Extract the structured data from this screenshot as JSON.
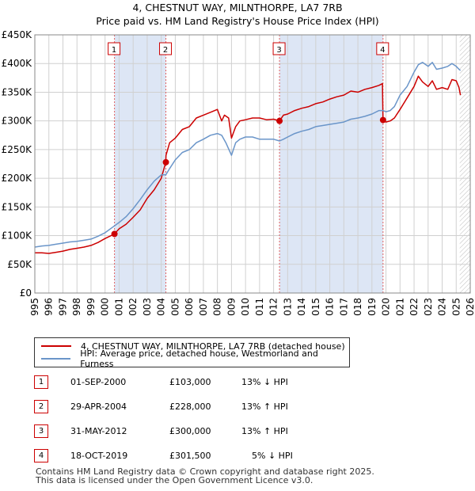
{
  "title_line1": "4, CHESTNUT WAY, MILNTHORPE, LA7 7RB",
  "title_line2": "Price paid vs. HM Land Registry's House Price Index (HPI)",
  "colors": {
    "property": "#cc0000",
    "hpi": "#6a95c9",
    "shade": "#dde6f5",
    "grid": "#d0d0d0"
  },
  "chart_data": {
    "type": "line",
    "title": "Price paid vs. HM Land Registry's House Price Index (HPI)",
    "xlim": [
      1995,
      2026
    ],
    "ylim": [
      0,
      450000
    ],
    "x_ticks": [
      "1995",
      "1996",
      "1997",
      "1998",
      "1999",
      "2000",
      "2001",
      "2002",
      "2003",
      "2004",
      "2005",
      "2006",
      "2007",
      "2008",
      "2009",
      "2010",
      "2011",
      "2012",
      "2013",
      "2014",
      "2015",
      "2016",
      "2017",
      "2018",
      "2019",
      "2020",
      "2021",
      "2022",
      "2023",
      "2024",
      "2025",
      "2026"
    ],
    "y_ticks": [
      {
        "value": 0,
        "label": "£0"
      },
      {
        "value": 50000,
        "label": "£50K"
      },
      {
        "value": 100000,
        "label": "£100K"
      },
      {
        "value": 150000,
        "label": "£150K"
      },
      {
        "value": 200000,
        "label": "£200K"
      },
      {
        "value": 250000,
        "label": "£250K"
      },
      {
        "value": 300000,
        "label": "£300K"
      },
      {
        "value": 350000,
        "label": "£350K"
      },
      {
        "value": 400000,
        "label": "£400K"
      },
      {
        "value": 450000,
        "label": "£450K"
      }
    ],
    "shaded_ranges": [
      [
        2000.67,
        2004.33
      ],
      [
        2012.42,
        2019.79
      ]
    ],
    "forecast_from": 2025.25,
    "series": [
      {
        "name": "4, CHESTNUT WAY, MILNTHORPE, LA7 7RB (detached house)",
        "key": "property",
        "x": [
          1995,
          1995.5,
          1996,
          1996.5,
          1997,
          1997.5,
          1998,
          1998.5,
          1999,
          1999.5,
          2000,
          2000.67,
          2001,
          2001.5,
          2002,
          2002.5,
          2003,
          2003.5,
          2004,
          2004.32,
          2004.34,
          2004.6,
          2005,
          2005.5,
          2006,
          2006.5,
          2007,
          2007.5,
          2008,
          2008.3,
          2008.5,
          2008.8,
          2009,
          2009.3,
          2009.6,
          2010,
          2010.5,
          2011,
          2011.5,
          2012,
          2012.42,
          2012.7,
          2013,
          2013.5,
          2014,
          2014.5,
          2015,
          2015.5,
          2016,
          2016.5,
          2017,
          2017.5,
          2018,
          2018.5,
          2019,
          2019.5,
          2019.75,
          2019.79,
          2020,
          2020.3,
          2020.6,
          2021,
          2021.5,
          2022,
          2022.3,
          2022.6,
          2023,
          2023.3,
          2023.6,
          2024,
          2024.4,
          2024.7,
          2025,
          2025.2,
          2025.3
        ],
        "y": [
          70000,
          70000,
          69000,
          71000,
          73000,
          76000,
          78000,
          80000,
          83000,
          88000,
          95000,
          103000,
          112000,
          120000,
          132000,
          145000,
          165000,
          180000,
          200000,
          228000,
          240000,
          262000,
          270000,
          285000,
          290000,
          305000,
          310000,
          315000,
          320000,
          300000,
          310000,
          305000,
          270000,
          290000,
          300000,
          302000,
          305000,
          305000,
          302000,
          303000,
          300000,
          310000,
          312000,
          318000,
          322000,
          325000,
          330000,
          333000,
          338000,
          342000,
          345000,
          352000,
          350000,
          355000,
          358000,
          362000,
          365000,
          301500,
          298000,
          300000,
          305000,
          320000,
          340000,
          360000,
          378000,
          368000,
          360000,
          370000,
          355000,
          358000,
          355000,
          372000,
          370000,
          358000,
          345000
        ]
      },
      {
        "name": "HPI: Average price, detached house, Westmorland and Furness",
        "key": "hpi",
        "x": [
          1995,
          1995.5,
          1996,
          1996.5,
          1997,
          1997.5,
          1998,
          1998.5,
          1999,
          1999.5,
          2000,
          2000.67,
          2001,
          2001.5,
          2002,
          2002.5,
          2003,
          2003.5,
          2004,
          2004.33,
          2004.6,
          2005,
          2005.5,
          2006,
          2006.5,
          2007,
          2007.5,
          2008,
          2008.3,
          2008.6,
          2009,
          2009.3,
          2009.6,
          2010,
          2010.5,
          2011,
          2011.5,
          2012,
          2012.42,
          2012.7,
          2013,
          2013.5,
          2014,
          2014.5,
          2015,
          2015.5,
          2016,
          2016.5,
          2017,
          2017.5,
          2018,
          2018.5,
          2019,
          2019.5,
          2019.79,
          2020,
          2020.3,
          2020.6,
          2021,
          2021.5,
          2022,
          2022.3,
          2022.6,
          2023,
          2023.3,
          2023.6,
          2024,
          2024.4,
          2024.7,
          2025,
          2025.2,
          2025.3
        ],
        "y": [
          80000,
          82000,
          83000,
          85000,
          87000,
          89000,
          90000,
          92000,
          94000,
          99000,
          105000,
          117000,
          123000,
          133000,
          147000,
          163000,
          180000,
          195000,
          206000,
          206000,
          217000,
          232000,
          245000,
          250000,
          262000,
          268000,
          275000,
          278000,
          275000,
          262000,
          240000,
          262000,
          268000,
          272000,
          272000,
          268000,
          268000,
          268000,
          265000,
          268000,
          272000,
          278000,
          282000,
          285000,
          290000,
          292000,
          294000,
          296000,
          298000,
          303000,
          305000,
          308000,
          312000,
          318000,
          318000,
          316000,
          318000,
          325000,
          345000,
          360000,
          385000,
          398000,
          402000,
          395000,
          402000,
          390000,
          392000,
          395000,
          400000,
          395000,
          390000,
          388000
        ]
      }
    ],
    "sales": [
      {
        "id": "1",
        "x": 2000.67,
        "value": 103000
      },
      {
        "id": "2",
        "x": 2004.33,
        "value": 228000
      },
      {
        "id": "3",
        "x": 2012.42,
        "value": 300000
      },
      {
        "id": "4",
        "x": 2019.79,
        "value": 301500
      }
    ]
  },
  "legend": {
    "property_label": "4, CHESTNUT WAY, MILNTHORPE, LA7 7RB (detached house)",
    "hpi_label": "HPI: Average price, detached house, Westmorland and Furness"
  },
  "sales_table": [
    {
      "id": "1",
      "date": "01-SEP-2000",
      "price": "£103,000",
      "change": "13% ↓ HPI"
    },
    {
      "id": "2",
      "date": "29-APR-2004",
      "price": "£228,000",
      "change": "13% ↑ HPI"
    },
    {
      "id": "3",
      "date": "31-MAY-2012",
      "price": "£300,000",
      "change": "13% ↑ HPI"
    },
    {
      "id": "4",
      "date": "18-OCT-2019",
      "price": "£301,500",
      "change": "5% ↓ HPI"
    }
  ],
  "footer": {
    "line1": "Contains HM Land Registry data © Crown copyright and database right 2025.",
    "line2": "This data is licensed under the Open Government Licence v3.0."
  }
}
